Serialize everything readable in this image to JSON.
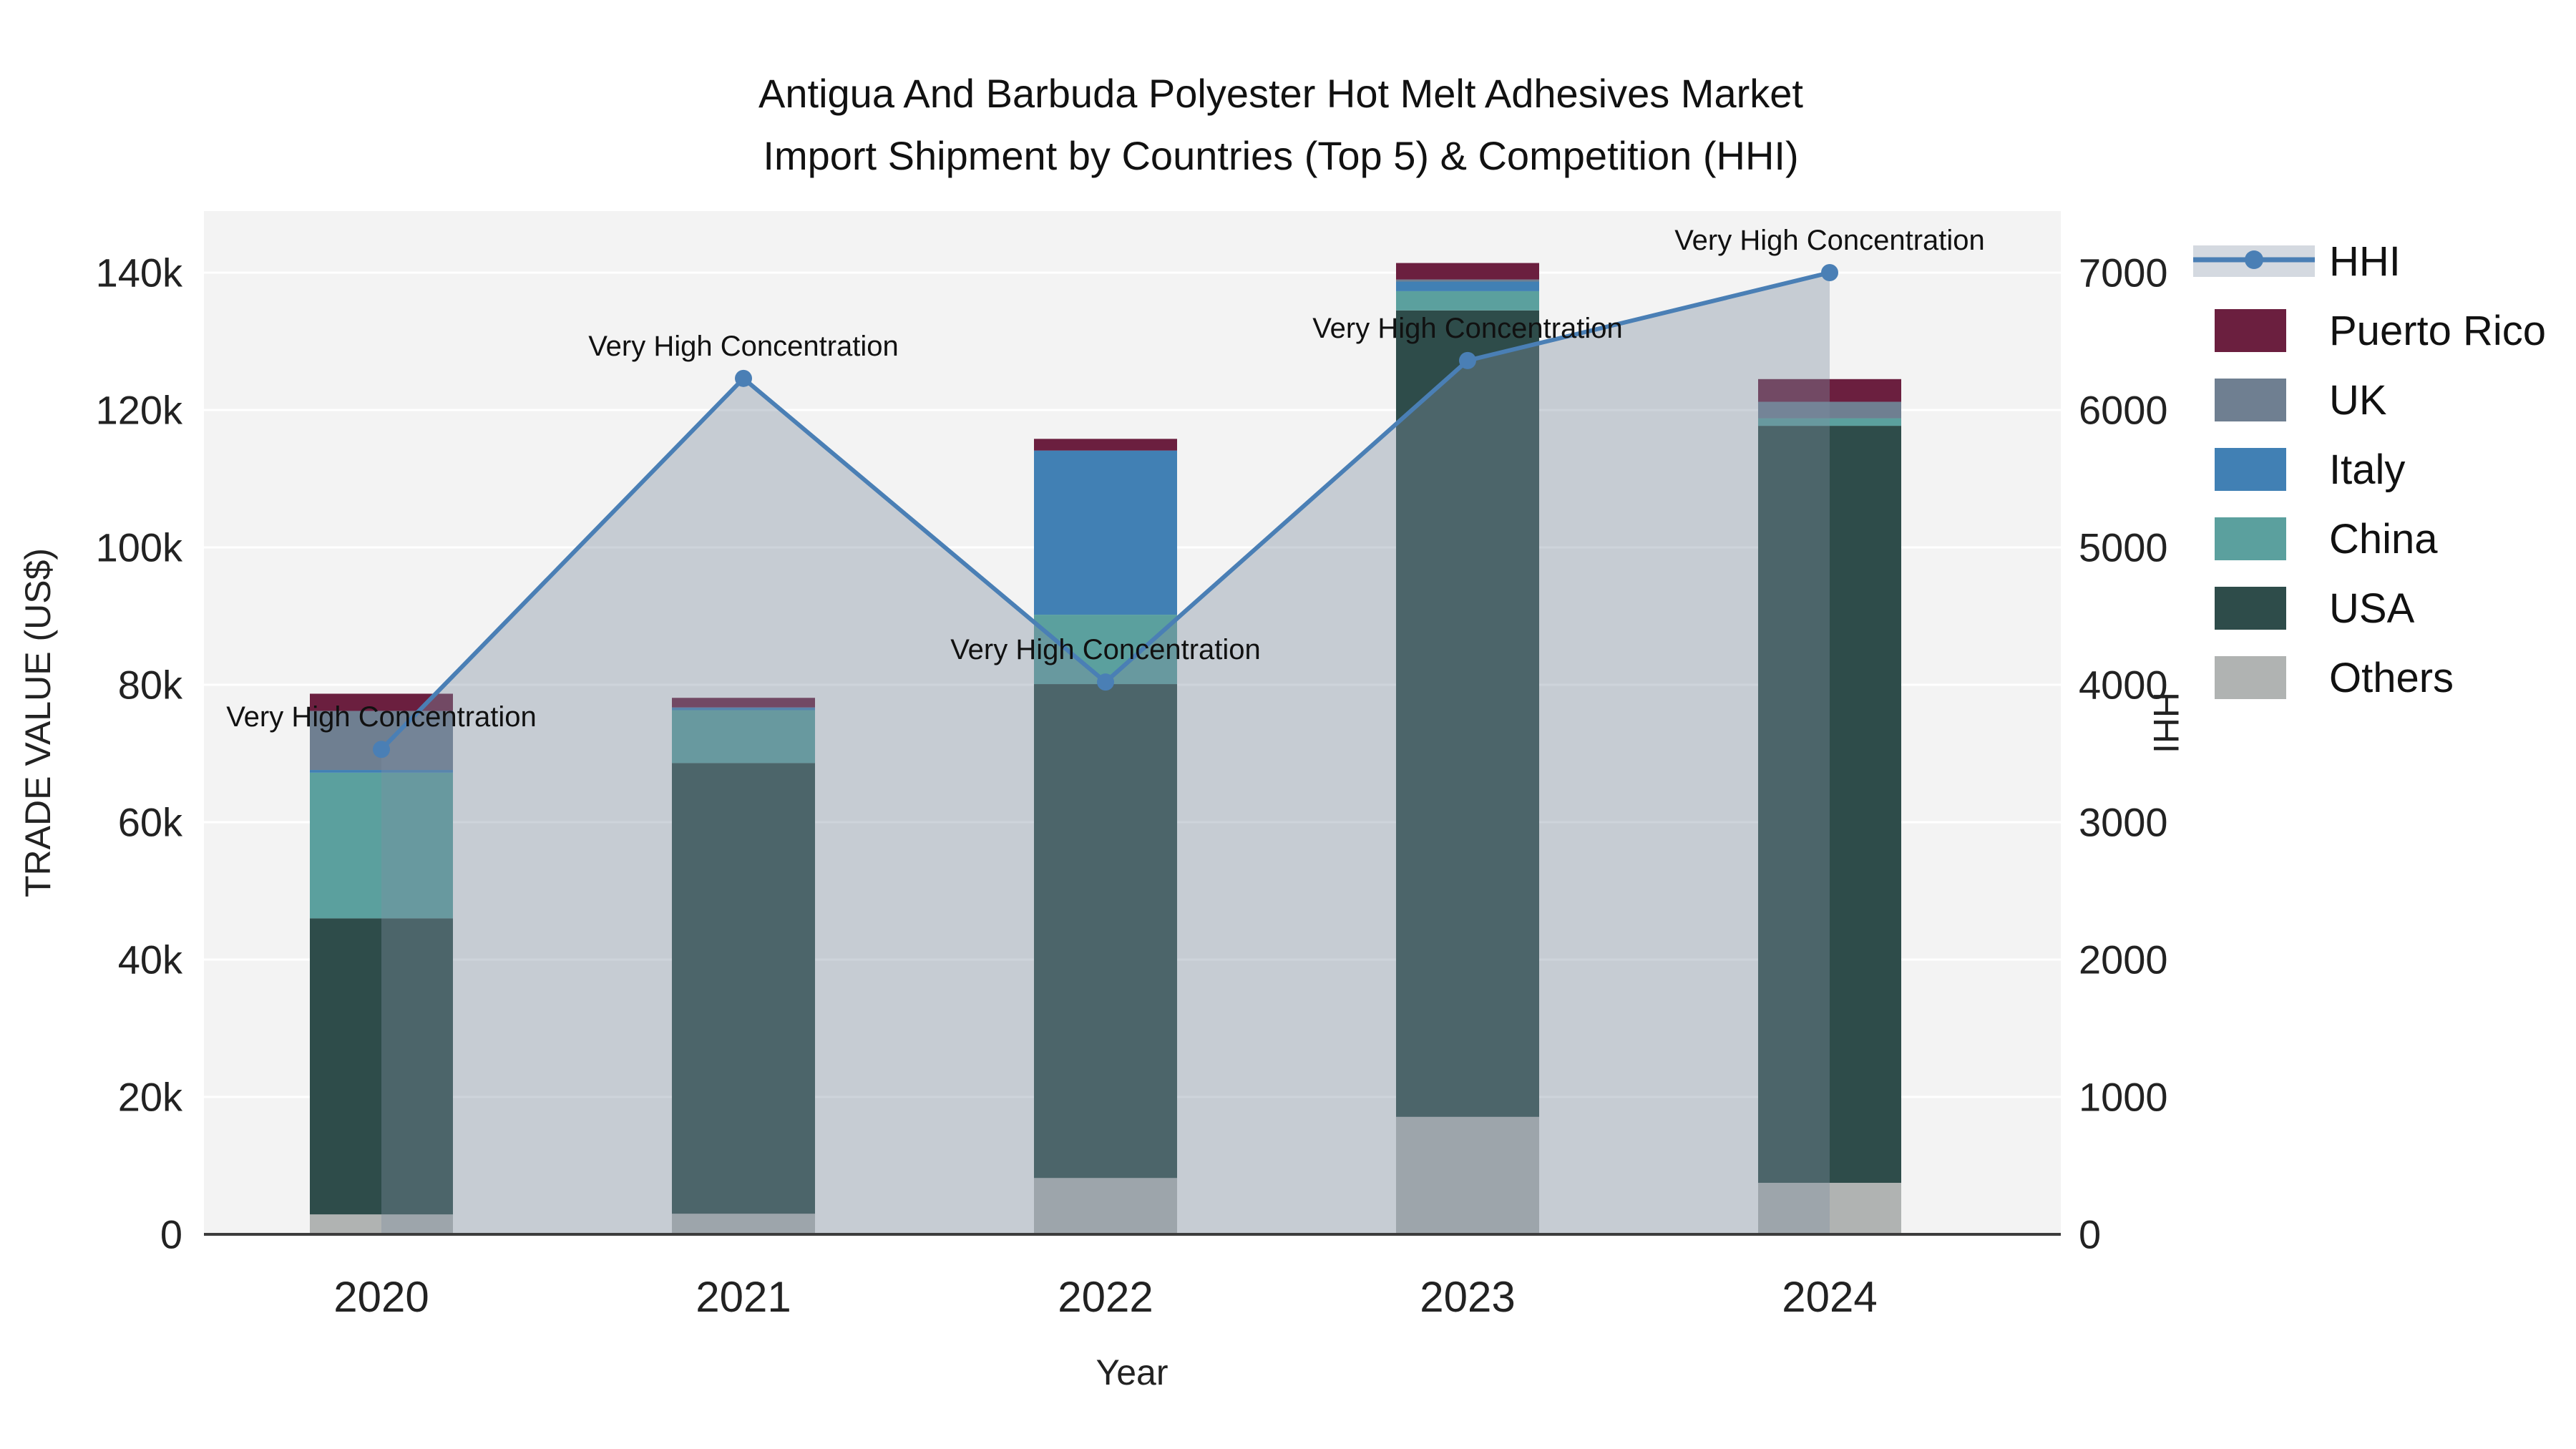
{
  "title": {
    "line1": "Antigua And Barbuda Polyester Hot Melt Adhesives Market",
    "line2": "Import Shipment by Countries (Top 5) & Competition (HHI)"
  },
  "legend": {
    "items": [
      {
        "label": "HHI",
        "type": "line"
      },
      {
        "label": "Puerto Rico",
        "type": "swatch"
      },
      {
        "label": "UK",
        "type": "swatch"
      },
      {
        "label": "Italy",
        "type": "swatch"
      },
      {
        "label": "China",
        "type": "swatch"
      },
      {
        "label": "USA",
        "type": "swatch"
      },
      {
        "label": "Others",
        "type": "swatch"
      }
    ]
  },
  "chart_data": {
    "type": "bar",
    "subtype": "stacked-bar-with-line",
    "title": "Antigua And Barbuda Polyester Hot Melt Adhesives Market Import Shipment by Countries (Top 5) & Competition (HHI)",
    "categories": [
      "2020",
      "2021",
      "2022",
      "2023",
      "2024"
    ],
    "series": [
      {
        "name": "Others",
        "color": "#b0b3b2",
        "values": [
          2900,
          3000,
          8200,
          17100,
          7500
        ]
      },
      {
        "name": "USA",
        "color": "#2e4c4a",
        "values": [
          43100,
          65600,
          71900,
          117400,
          110200
        ]
      },
      {
        "name": "China",
        "color": "#5ba09e",
        "values": [
          21200,
          7700,
          10100,
          2800,
          1100
        ]
      },
      {
        "name": "Italy",
        "color": "#4180b4",
        "values": [
          400,
          400,
          23900,
          1400,
          0
        ]
      },
      {
        "name": "UK",
        "color": "#6f7f91",
        "values": [
          8600,
          0,
          0,
          300,
          2400
        ]
      },
      {
        "name": "Puerto Rico",
        "color": "#6b1f3f",
        "values": [
          2500,
          1400,
          1700,
          2400,
          3300
        ]
      }
    ],
    "totals": [
      78700,
      78100,
      115800,
      141400,
      124500
    ],
    "hhi": {
      "name": "HHI",
      "values": [
        3530,
        6230,
        4020,
        6360,
        7000
      ],
      "line_color": "#4a7fb5",
      "marker_color": "#4a7fb5",
      "fill_color": "rgba(127,142,160,0.38)",
      "legend_band_color": "#d4d9e0"
    },
    "annotations": [
      "Very High Concentration",
      "Very High Concentration",
      "Very High Concentration",
      "Very High Concentration",
      "Very High Concentration"
    ],
    "xlabel": "Year",
    "ylabel": "TRADE VALUE (US$)",
    "y2label": "HHI",
    "ylim": [
      0,
      140000
    ],
    "y2lim": [
      0,
      7000
    ],
    "y_ticks": [
      "0",
      "20k",
      "40k",
      "60k",
      "80k",
      "100k",
      "120k",
      "140k"
    ],
    "y2_ticks": [
      "0",
      "1000",
      "2000",
      "3000",
      "4000",
      "5000",
      "6000",
      "7000"
    ],
    "grid": true,
    "legend_position": "right",
    "plot_bg": "#f3f3f3",
    "grid_color": "#ffffff",
    "axis_line_color": "#3c3c3c",
    "text_color": "#222222"
  }
}
